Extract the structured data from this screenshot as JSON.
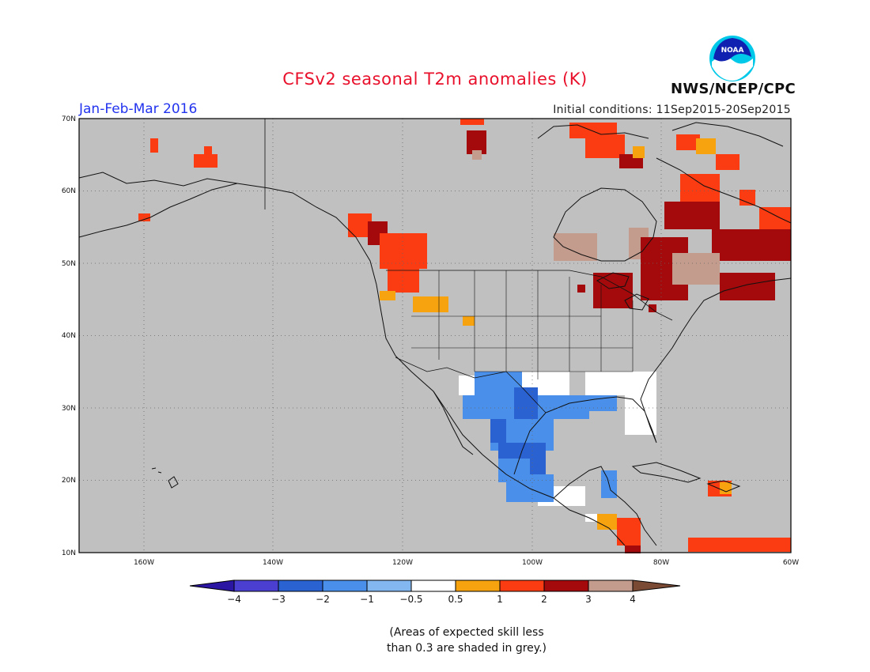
{
  "title": "CFSv2 seasonal T2m anomalies (K)",
  "season": "Jan-Feb-Mar 2016",
  "initial_conditions": "Initial conditions: 11Sep2015-20Sep2015",
  "agency": "NWS/NCEP/CPC",
  "logo_text": "NOAA",
  "skill_note_line1": "(Areas of expected skill less",
  "skill_note_line2": "than 0.3 are shaded in grey.)",
  "lat_labels": [
    "70N",
    "60N",
    "50N",
    "40N",
    "30N",
    "20N",
    "10N"
  ],
  "lon_labels": [
    "160W",
    "140W",
    "120W",
    "100W",
    "80W",
    "60W"
  ],
  "colorbar": {
    "ticks": [
      "−4",
      "−3",
      "−2",
      "−1",
      "−0.5",
      "0.5",
      "1",
      "2",
      "3",
      "4"
    ],
    "colors": [
      "#2a16a3",
      "#4a3fd0",
      "#2a62d2",
      "#4a90ea",
      "#82b8ef",
      "#ffffff",
      "#f7a30f",
      "#fb3c12",
      "#a40a0b",
      "#c39c8d",
      "#7a4a35"
    ]
  },
  "colors": {
    "ocean": "#c0c0c0",
    "skill_grey": "#c0c0c0",
    "title_red": "#e8102b",
    "season_blue": "#2233ee"
  }
}
